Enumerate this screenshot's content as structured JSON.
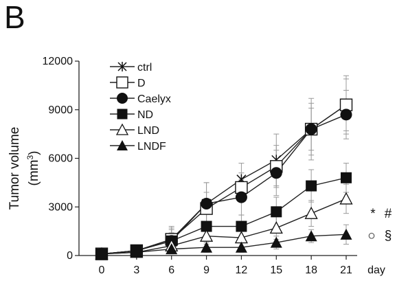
{
  "panel_label": "B",
  "chart_data": {
    "type": "line",
    "xlabel": "day",
    "ylabel_main": "Tumor volume",
    "ylabel_unit_prefix": "(mm",
    "ylabel_unit_sup": "3",
    "ylabel_unit_suffix": ")",
    "x": [
      0,
      3,
      6,
      9,
      12,
      15,
      18,
      21
    ],
    "x_ticks": [
      "0",
      "3",
      "6",
      "9",
      "12",
      "15",
      "18",
      "21"
    ],
    "y_ticks": [
      "0",
      "3000",
      "6000",
      "9000",
      "12000"
    ],
    "y_tick_values": [
      0,
      3000,
      6000,
      9000,
      12000
    ],
    "ylim": [
      0,
      12000
    ],
    "legend_position": "top-left",
    "grid": false,
    "series": [
      {
        "name": "ctrl",
        "marker": "star",
        "values": [
          100,
          300,
          1000,
          3200,
          4700,
          5900,
          7800,
          9300
        ],
        "err": [
          0,
          100,
          800,
          1300,
          1000,
          1600,
          1900,
          1800
        ]
      },
      {
        "name": "D",
        "marker": "square-open",
        "values": [
          100,
          300,
          1000,
          2900,
          4200,
          5500,
          7800,
          9300
        ],
        "err": [
          0,
          100,
          700,
          1000,
          900,
          1300,
          1600,
          1600
        ]
      },
      {
        "name": "Caelyx",
        "marker": "circle-filled",
        "values": [
          100,
          300,
          900,
          3200,
          3600,
          5100,
          7800,
          8700
        ],
        "err": [
          0,
          100,
          700,
          1300,
          1100,
          1400,
          1300,
          1500
        ]
      },
      {
        "name": "ND",
        "marker": "square-filled",
        "values": [
          100,
          300,
          900,
          1800,
          1800,
          2700,
          4300,
          4800
        ],
        "err": [
          0,
          100,
          500,
          800,
          700,
          900,
          1000,
          900
        ]
      },
      {
        "name": "LND",
        "marker": "triangle-open",
        "values": [
          100,
          200,
          600,
          1200,
          1100,
          1700,
          2600,
          3500
        ],
        "err": [
          0,
          100,
          400,
          500,
          600,
          700,
          800,
          900
        ]
      },
      {
        "name": "LNDF",
        "marker": "triangle-filled",
        "values": [
          100,
          200,
          400,
          500,
          500,
          800,
          1200,
          1300
        ],
        "err": [
          0,
          100,
          300,
          300,
          300,
          400,
          400,
          600
        ]
      }
    ],
    "annotations": [
      "*",
      "#",
      "○",
      "§"
    ]
  }
}
